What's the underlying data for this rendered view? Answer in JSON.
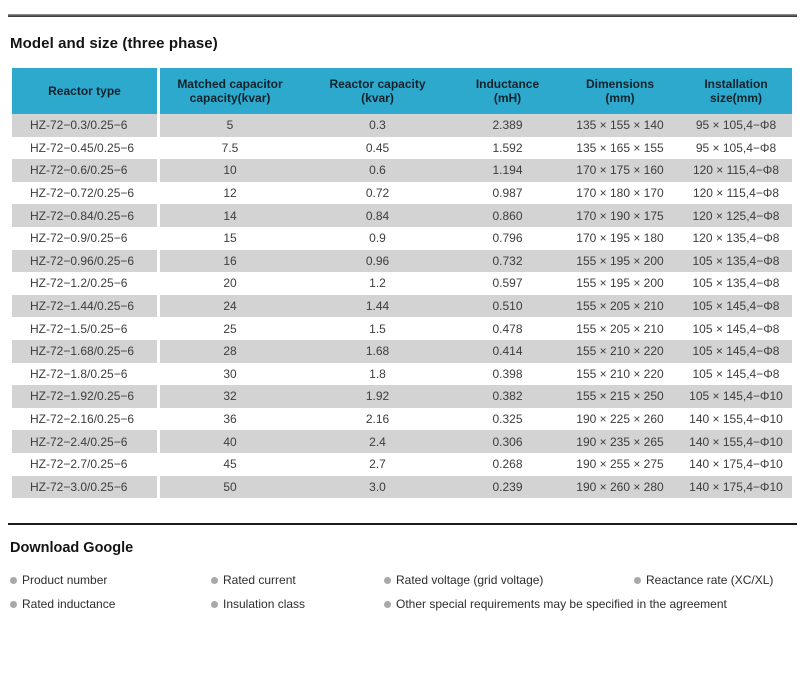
{
  "page": {
    "title": "Model and size (three phase)"
  },
  "table": {
    "columns": [
      {
        "line1": "Reactor type",
        "line2": ""
      },
      {
        "line1": "Matched capacitor",
        "line2": "capacity(kvar)"
      },
      {
        "line1": "Reactor capacity",
        "line2": "(kvar)"
      },
      {
        "line1": "Inductance",
        "line2": "(mH)"
      },
      {
        "line1": "Dimensions",
        "line2": "(mm)"
      },
      {
        "line1": "Installation",
        "line2": "size(mm)"
      }
    ],
    "rows": [
      [
        "HZ-72−0.3/0.25−6",
        "5",
        "0.3",
        "2.389",
        "135 × 155 × 140",
        "95 × 105,4−Φ8"
      ],
      [
        "HZ-72−0.45/0.25−6",
        "7.5",
        "0.45",
        "1.592",
        "135 × 165 × 155",
        "95 × 105,4−Φ8"
      ],
      [
        "HZ-72−0.6/0.25−6",
        "10",
        "0.6",
        "1.194",
        "170 × 175 × 160",
        "120 × 115,4−Φ8"
      ],
      [
        "HZ-72−0.72/0.25−6",
        "12",
        "0.72",
        "0.987",
        "170 × 180 × 170",
        "120 × 115,4−Φ8"
      ],
      [
        "HZ-72−0.84/0.25−6",
        "14",
        "0.84",
        "0.860",
        "170 × 190 × 175",
        "120 × 125,4−Φ8"
      ],
      [
        "HZ-72−0.9/0.25−6",
        "15",
        "0.9",
        "0.796",
        "170 × 195 × 180",
        "120 × 135,4−Φ8"
      ],
      [
        "HZ-72−0.96/0.25−6",
        "16",
        "0.96",
        "0.732",
        "155 × 195 × 200",
        "105 × 135,4−Φ8"
      ],
      [
        "HZ-72−1.2/0.25−6",
        "20",
        "1.2",
        "0.597",
        "155 × 195 × 200",
        "105 × 135,4−Φ8"
      ],
      [
        "HZ-72−1.44/0.25−6",
        "24",
        "1.44",
        "0.510",
        "155 × 205 × 210",
        "105 × 145,4−Φ8"
      ],
      [
        "HZ-72−1.5/0.25−6",
        "25",
        "1.5",
        "0.478",
        "155 × 205 × 210",
        "105 × 145,4−Φ8"
      ],
      [
        "HZ-72−1.68/0.25−6",
        "28",
        "1.68",
        "0.414",
        "155 × 210 × 220",
        "105 × 145,4−Φ8"
      ],
      [
        "HZ-72−1.8/0.25−6",
        "30",
        "1.8",
        "0.398",
        "155 × 210 × 220",
        "105 × 145,4−Φ8"
      ],
      [
        "HZ-72−1.92/0.25−6",
        "32",
        "1.92",
        "0.382",
        "155 × 215 × 250",
        "105 × 145,4−Φ10"
      ],
      [
        "HZ-72−2.16/0.25−6",
        "36",
        "2.16",
        "0.325",
        "190 × 225 × 260",
        "140 × 155,4−Φ10"
      ],
      [
        "HZ-72−2.4/0.25−6",
        "40",
        "2.4",
        "0.306",
        "190 × 235 × 265",
        "140 × 155,4−Φ10"
      ],
      [
        "HZ-72−2.7/0.25−6",
        "45",
        "2.7",
        "0.268",
        "190 × 255 × 275",
        "140 × 175,4−Φ10"
      ],
      [
        "HZ-72−3.0/0.25−6",
        "50",
        "3.0",
        "0.239",
        "190 × 260 × 280",
        "140 × 175,4−Φ10"
      ]
    ]
  },
  "download": {
    "title": "Download Google",
    "rows": [
      [
        "Product number",
        "Rated current",
        "Rated voltage (grid voltage)",
        "Reactance rate (XC/XL)"
      ],
      [
        "Rated inductance",
        "Insulation class",
        "Other special requirements may be specified in the agreement"
      ]
    ]
  },
  "colors": {
    "header_bg": "#2EA9CE",
    "row_alt_bg": "#D3D3D3",
    "bullet_dot": "#A8A8A8"
  }
}
